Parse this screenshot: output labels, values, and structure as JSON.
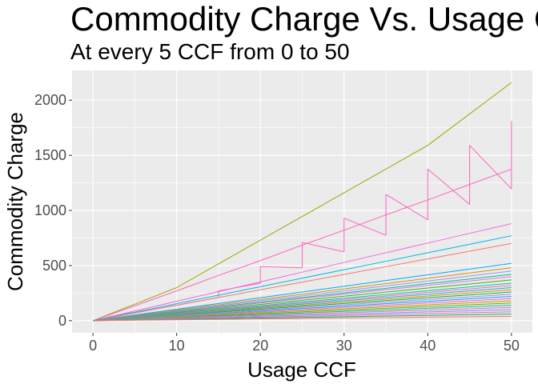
{
  "chart_data": {
    "type": "line",
    "title": "Commodity Charge Vs. Usage CCF",
    "subtitle": "At every 5 CCF from 0 to 50",
    "xlabel": "Usage CCF",
    "ylabel": "Commodity Charge",
    "x": [
      0,
      5,
      10,
      15,
      20,
      25,
      30,
      35,
      40,
      45,
      50
    ],
    "xticks": [
      0,
      10,
      20,
      30,
      40,
      50
    ],
    "yticks": [
      0,
      500,
      1000,
      1500,
      2000
    ],
    "xlim": [
      -2.5,
      52.5
    ],
    "ylim": [
      -110,
      2270
    ],
    "grid": true,
    "legend": "none",
    "background": "#ebebeb",
    "series": [
      {
        "color": "#a3a500",
        "values": [
          0,
          150,
          300,
          515,
          730,
          945,
          1160,
          1375,
          1590,
          1875,
          2160
        ]
      },
      {
        "color": "#ff62bc",
        "values": [
          0,
          135,
          270,
          410,
          545,
          685,
          820,
          960,
          1095,
          1235,
          1375
        ]
      },
      {
        "color": "#ff61c3",
        "steps": [
          [
            0,
            0
          ],
          [
            15,
            210
          ],
          [
            15,
            270
          ],
          [
            20,
            340
          ],
          [
            20,
            490
          ],
          [
            25,
            480
          ],
          [
            25,
            710
          ],
          [
            30,
            625
          ],
          [
            30,
            930
          ],
          [
            35,
            775
          ],
          [
            35,
            1145
          ],
          [
            40,
            915
          ],
          [
            40,
            1375
          ],
          [
            45,
            1055
          ],
          [
            45,
            1590
          ],
          [
            50,
            1195
          ],
          [
            50,
            1810
          ]
        ]
      },
      {
        "color": "#f564e3",
        "values": [
          0,
          88,
          176,
          264,
          352,
          440,
          528,
          616,
          704,
          792,
          880
        ]
      },
      {
        "color": "#00b8e7",
        "values": [
          0,
          77,
          154,
          231,
          308,
          385,
          462,
          539,
          616,
          693,
          770
        ]
      },
      {
        "color": "#f8766d",
        "values": [
          0,
          70,
          140,
          210,
          280,
          350,
          420,
          490,
          560,
          630,
          700
        ]
      },
      {
        "color": "#00a9ff",
        "values": [
          0,
          52,
          104,
          156,
          208,
          260,
          312,
          364,
          416,
          468,
          520
        ]
      },
      {
        "color": "#d89000",
        "values": [
          0,
          48,
          96,
          144,
          192,
          240,
          288,
          336,
          384,
          432,
          480
        ]
      },
      {
        "color": "#9590ff",
        "values": [
          0,
          45,
          90,
          135,
          180,
          225,
          270,
          315,
          360,
          405,
          450
        ]
      },
      {
        "color": "#00bf7d",
        "values": [
          0,
          42,
          84,
          126,
          168,
          210,
          252,
          294,
          336,
          378,
          420
        ]
      },
      {
        "color": "#e76bf3",
        "values": [
          0,
          40,
          80,
          120,
          160,
          200,
          240,
          280,
          320,
          360,
          400
        ]
      },
      {
        "color": "#39b600",
        "values": [
          0,
          37,
          74,
          111,
          148,
          185,
          222,
          259,
          296,
          333,
          370
        ]
      },
      {
        "color": "#00c1aa",
        "values": [
          0,
          34,
          68,
          102,
          136,
          170,
          204,
          238,
          272,
          306,
          340
        ]
      },
      {
        "color": "#ff62bc",
        "values": [
          0,
          32,
          64,
          96,
          128,
          160,
          192,
          224,
          256,
          288,
          320
        ]
      },
      {
        "color": "#00bcd8",
        "values": [
          0,
          30,
          60,
          90,
          120,
          150,
          180,
          210,
          240,
          270,
          300
        ]
      },
      {
        "color": "#e58700",
        "values": [
          0,
          28,
          56,
          84,
          112,
          140,
          168,
          196,
          224,
          252,
          280
        ]
      },
      {
        "color": "#00ba38",
        "values": [
          0,
          26,
          52,
          78,
          104,
          130,
          156,
          182,
          208,
          234,
          260
        ]
      },
      {
        "color": "#b983ff",
        "values": [
          0,
          24,
          48,
          72,
          96,
          120,
          144,
          168,
          192,
          216,
          240
        ]
      },
      {
        "color": "#00b0f6",
        "values": [
          0,
          22,
          44,
          66,
          88,
          110,
          132,
          154,
          176,
          198,
          220
        ]
      },
      {
        "color": "#fd61d1",
        "values": [
          0,
          20,
          40,
          60,
          80,
          100,
          120,
          140,
          160,
          180,
          200
        ]
      },
      {
        "color": "#c99800",
        "values": [
          0,
          18,
          36,
          54,
          72,
          90,
          108,
          126,
          144,
          162,
          180
        ]
      },
      {
        "color": "#6bb100",
        "values": [
          0,
          16,
          32,
          48,
          64,
          80,
          96,
          112,
          128,
          144,
          160
        ]
      },
      {
        "color": "#00c0b8",
        "values": [
          0,
          14,
          28,
          42,
          56,
          70,
          84,
          98,
          112,
          126,
          140
        ]
      },
      {
        "color": "#ff6a98",
        "values": [
          0,
          12,
          24,
          36,
          48,
          60,
          72,
          84,
          96,
          108,
          120
        ]
      },
      {
        "color": "#619cff",
        "values": [
          0,
          10,
          20,
          30,
          40,
          50,
          60,
          70,
          80,
          90,
          100
        ]
      },
      {
        "color": "#ff61c3",
        "values": [
          0,
          8,
          16,
          24,
          32,
          40,
          48,
          56,
          64,
          72,
          80
        ]
      },
      {
        "color": "#00bc56",
        "values": [
          0,
          6,
          12,
          18,
          24,
          30,
          36,
          42,
          48,
          54,
          60
        ]
      },
      {
        "color": "#f8766d",
        "values": [
          0,
          4,
          8,
          12,
          16,
          20,
          24,
          28,
          32,
          36,
          40
        ]
      }
    ]
  }
}
